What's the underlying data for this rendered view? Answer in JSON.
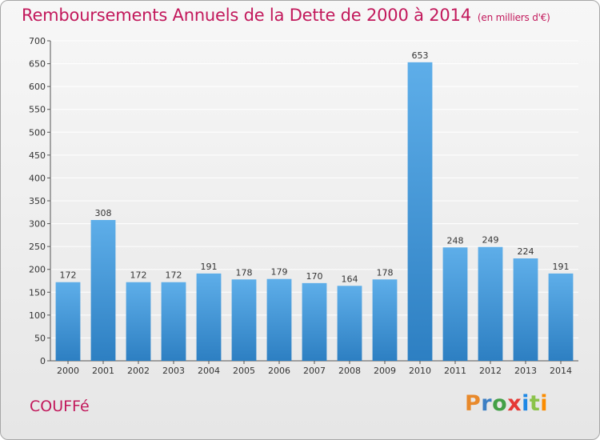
{
  "header": {
    "title": "Remboursements Annuels de la Dette de 2000 à 2014",
    "subtitle": "(en milliers d'€)"
  },
  "footer": {
    "town": "COUFFé",
    "logo_text": "Proxiti"
  },
  "colors": {
    "title": "#c2185b",
    "bar_top": "#5eaee9",
    "bar_bottom": "#2d7fc2",
    "grid": "#ffffff",
    "text": "#333333"
  },
  "chart_data": {
    "type": "bar",
    "title": "Remboursements Annuels de la Dette de 2000 à 2014",
    "subtitle": "(en milliers d'€)",
    "xlabel": "",
    "ylabel": "",
    "categories": [
      "2000",
      "2001",
      "2002",
      "2003",
      "2004",
      "2005",
      "2006",
      "2007",
      "2008",
      "2009",
      "2010",
      "2011",
      "2012",
      "2013",
      "2014"
    ],
    "values": [
      172,
      308,
      172,
      172,
      191,
      178,
      179,
      170,
      164,
      178,
      653,
      248,
      249,
      224,
      191
    ],
    "ylim": [
      0,
      700
    ],
    "yticks": [
      0,
      50,
      100,
      150,
      200,
      250,
      300,
      350,
      400,
      450,
      500,
      550,
      600,
      650,
      700
    ],
    "grid": true,
    "data_labels": true
  }
}
